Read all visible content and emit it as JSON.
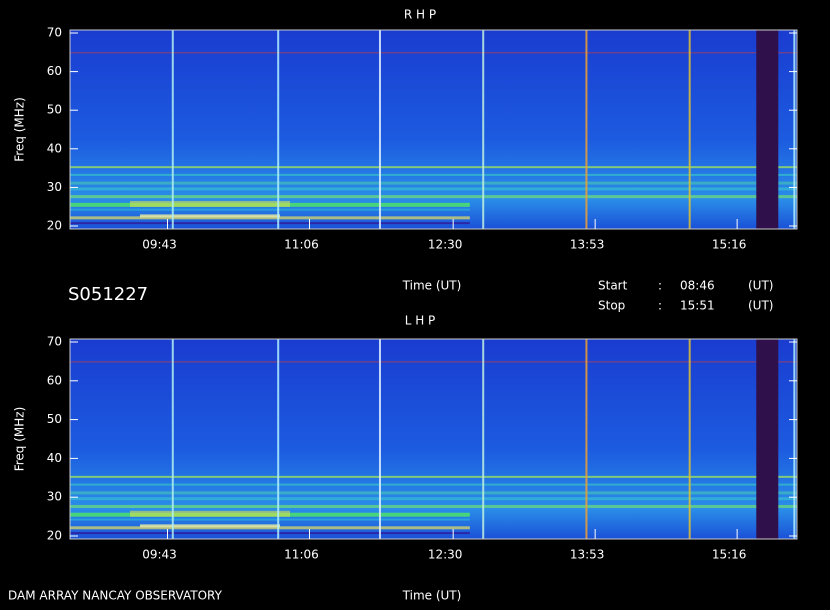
{
  "observation": {
    "id": "S051227",
    "start_label": "Start",
    "stop_label": "Stop",
    "separator": ":",
    "unit": "(UT)",
    "footer": "DAM ARRAY  NANCAY OBSERVATORY"
  },
  "chart_data": [
    {
      "type": "spectrogram",
      "title": "R H P",
      "xlabel": "Time (UT)",
      "ylabel": "Freq (MHz)",
      "xlim": [
        "08:46",
        "15:51"
      ],
      "xticks": [
        "09:43",
        "11:06",
        "12:30",
        "13:53",
        "15:16"
      ],
      "ylim": [
        20,
        70
      ],
      "yticks": [
        20,
        30,
        40,
        50,
        60,
        70
      ]
    },
    {
      "type": "spectrogram",
      "title": "L H P",
      "xlabel": "Time (UT)",
      "ylabel": "Freq (MHz)",
      "xlim": [
        "08:46",
        "15:51"
      ],
      "xticks": [
        "09:43",
        "11:06",
        "12:30",
        "13:53",
        "15:16"
      ],
      "ylim": [
        20,
        70
      ],
      "yticks": [
        20,
        30,
        40,
        50,
        60,
        70
      ]
    }
  ]
}
